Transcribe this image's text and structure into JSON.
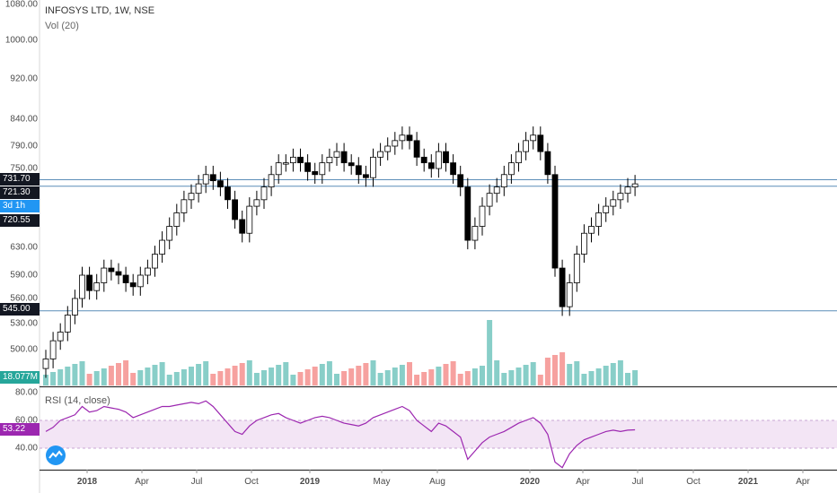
{
  "legend": {
    "title": "INFOSYS LTD, 1W, NSE",
    "volume": "Vol (20)",
    "rsi": "RSI (14, close)"
  },
  "price_axis": {
    "ticks": [
      "1080.00",
      "1000.00",
      "920.00",
      "840.00",
      "790.00",
      "750.00",
      "630.00",
      "590.00",
      "560.00",
      "530.00",
      "500.00"
    ],
    "badges": [
      {
        "text": "731.70",
        "color": "#131722"
      },
      {
        "text": "721.30",
        "color": "#131722"
      },
      {
        "text": "3d 1h",
        "color": "#2196f3"
      },
      {
        "text": "720.55",
        "color": "#131722"
      },
      {
        "text": "545.00",
        "color": "#131722"
      },
      {
        "text": "18.077M",
        "color": "#26a69a"
      }
    ]
  },
  "rsi_axis": {
    "ticks": [
      "80.00",
      "60.00",
      "40.00"
    ],
    "badge": {
      "text": "53.22",
      "color": "#9c27b0"
    }
  },
  "time_axis": {
    "labels": [
      {
        "text": "2018",
        "bold": true
      },
      {
        "text": "Apr",
        "bold": false
      },
      {
        "text": "Jul",
        "bold": false
      },
      {
        "text": "Oct",
        "bold": false
      },
      {
        "text": "2019",
        "bold": true
      },
      {
        "text": "May",
        "bold": false
      },
      {
        "text": "Aug",
        "bold": false
      },
      {
        "text": "2020",
        "bold": true
      },
      {
        "text": "Apr",
        "bold": false
      },
      {
        "text": "Jul",
        "bold": false
      },
      {
        "text": "Oct",
        "bold": false
      },
      {
        "text": "2021",
        "bold": true
      },
      {
        "text": "Apr",
        "bold": false
      }
    ]
  },
  "colors": {
    "up_volume": "#26a69a",
    "down_volume": "#ef5350",
    "candle_up_fill": "#ffffff",
    "candle_down_fill": "#000000",
    "hline": "#5b8db8",
    "rsi_line": "#9c27b0",
    "rsi_band": "#f3e5f5"
  },
  "horizontal_lines": [
    731.7,
    721.3,
    545.0
  ],
  "chart_data": {
    "type": "candlestick",
    "title": "INFOSYS LTD, 1W, NSE",
    "ylim_log_range": [
      470,
      1080
    ],
    "log_scale": true,
    "weekly_close_estimates": [
      490,
      510,
      520,
      540,
      560,
      590,
      570,
      580,
      600,
      595,
      590,
      580,
      575,
      590,
      600,
      620,
      640,
      660,
      680,
      700,
      710,
      725,
      740,
      730,
      720,
      700,
      670,
      650,
      690,
      700,
      720,
      740,
      760,
      760,
      770,
      760,
      745,
      740,
      760,
      770,
      780,
      760,
      755,
      740,
      735,
      770,
      780,
      790,
      800,
      810,
      800,
      770,
      760,
      750,
      780,
      760,
      740,
      720,
      640,
      660,
      690,
      710,
      720,
      740,
      760,
      780,
      800,
      810,
      780,
      740,
      600,
      550,
      580,
      620,
      650,
      660,
      680,
      690,
      700,
      710,
      720,
      725
    ]
  },
  "rsi_values": [
    52,
    55,
    60,
    62,
    64,
    70,
    66,
    67,
    70,
    69,
    68,
    66,
    62,
    64,
    66,
    68,
    70,
    70,
    71,
    72,
    73,
    72,
    74,
    70,
    64,
    58,
    52,
    50,
    56,
    60,
    62,
    64,
    65,
    62,
    60,
    58,
    60,
    62,
    63,
    62,
    60,
    58,
    57,
    56,
    58,
    62,
    64,
    66,
    68,
    70,
    67,
    60,
    56,
    52,
    58,
    56,
    52,
    48,
    32,
    38,
    44,
    48,
    50,
    52,
    55,
    58,
    60,
    62,
    58,
    50,
    30,
    26,
    36,
    42,
    46,
    48,
    50,
    52,
    53,
    52,
    53,
    53.22
  ]
}
